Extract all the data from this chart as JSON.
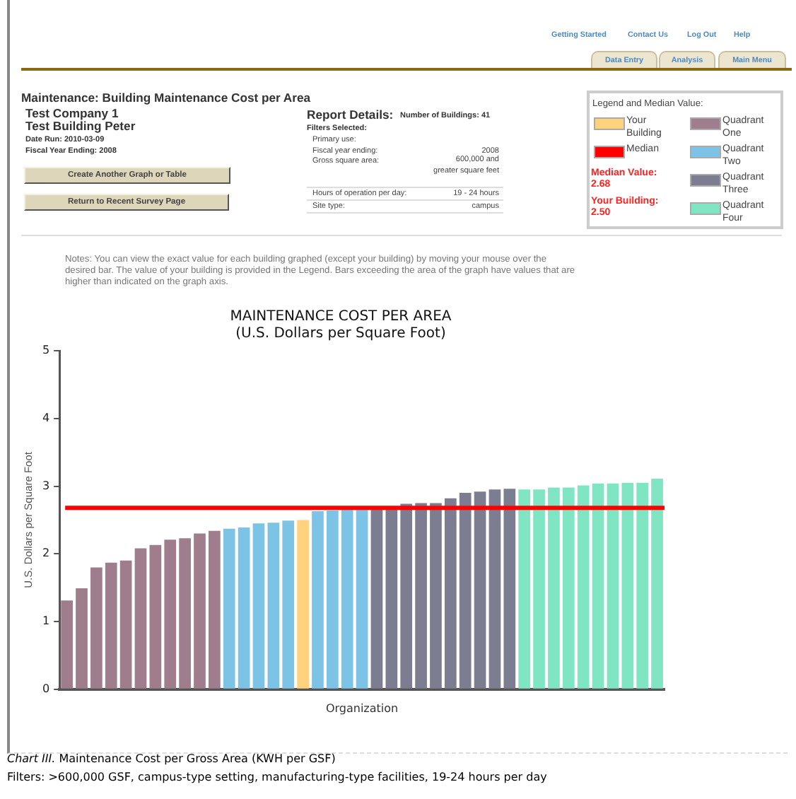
{
  "chart_data": {
    "type": "bar",
    "title": "MAINTENANCE COST PER AREA",
    "subtitle": "(U.S. Dollars per Square Foot)",
    "xlabel": "Organization",
    "ylabel": "U.S. Dollars per Square Foot",
    "legend_title": "Legend and Median Value:",
    "legend": "top right",
    "categories": [
      null,
      null,
      null,
      null,
      null,
      null,
      null,
      null,
      null,
      null,
      null,
      null,
      null,
      null,
      null,
      null,
      null,
      null,
      null,
      null,
      null,
      null,
      null,
      null,
      null,
      null,
      null,
      null,
      null,
      null,
      null,
      null,
      null,
      null,
      null,
      null,
      null,
      null,
      null,
      null,
      null
    ],
    "series": [
      {
        "name": "Your Building",
        "color": "#ffd27d",
        "values": [
          null,
          null,
          null,
          null,
          null,
          null,
          null,
          null,
          null,
          null,
          null,
          null,
          null,
          null,
          null,
          null,
          2.5,
          null,
          null,
          null,
          null,
          null,
          null,
          null,
          null,
          null,
          null,
          null,
          null,
          null,
          null,
          null,
          null,
          null,
          null,
          null,
          null,
          null,
          null,
          null,
          null
        ]
      },
      {
        "name": "Quadrant One",
        "color": "#a07d8c",
        "values": [
          1.31,
          1.49,
          1.8,
          1.87,
          1.9,
          2.08,
          2.13,
          2.21,
          2.23,
          2.3,
          2.34,
          null,
          null,
          null,
          null,
          null,
          null,
          null,
          null,
          null,
          null,
          null,
          null,
          null,
          null,
          null,
          null,
          null,
          null,
          null,
          null,
          null,
          null,
          null,
          null,
          null,
          null,
          null,
          null,
          null,
          null
        ]
      },
      {
        "name": "Quadrant Two",
        "color": "#7dc3e6",
        "values": [
          null,
          null,
          null,
          null,
          null,
          null,
          null,
          null,
          null,
          null,
          null,
          2.37,
          2.39,
          2.45,
          2.46,
          2.49,
          null,
          2.63,
          2.64,
          2.66,
          2.68,
          null,
          null,
          null,
          null,
          null,
          null,
          null,
          null,
          null,
          null,
          null,
          null,
          null,
          null,
          null,
          null,
          null,
          null,
          null,
          null
        ]
      },
      {
        "name": "Quadrant Three",
        "color": "#7d7d91",
        "values": [
          null,
          null,
          null,
          null,
          null,
          null,
          null,
          null,
          null,
          null,
          null,
          null,
          null,
          null,
          null,
          null,
          null,
          null,
          null,
          null,
          null,
          2.69,
          2.7,
          2.74,
          2.75,
          2.75,
          2.82,
          2.9,
          2.92,
          2.95,
          2.96,
          null,
          null,
          null,
          null,
          null,
          null,
          null,
          null,
          null,
          null
        ]
      },
      {
        "name": "Quadrant Four",
        "color": "#80e5c3",
        "values": [
          null,
          null,
          null,
          null,
          null,
          null,
          null,
          null,
          null,
          null,
          null,
          null,
          null,
          null,
          null,
          null,
          null,
          null,
          null,
          null,
          null,
          null,
          null,
          null,
          null,
          null,
          null,
          null,
          null,
          null,
          null,
          2.95,
          2.95,
          2.98,
          2.98,
          3.01,
          3.04,
          3.04,
          3.05,
          3.05,
          3.11
        ]
      }
    ],
    "ylim": [
      0,
      5
    ],
    "yticks": [
      0,
      1,
      2,
      3,
      4,
      5
    ],
    "ref_lines": [
      {
        "axis": "y",
        "value": 2.68,
        "label": "Median",
        "color": "#ff0000"
      }
    ],
    "annotations": [
      "Getting Started",
      "Contact Us",
      "Log Out",
      "Help",
      "Data Entry",
      "Analysis",
      "Main Menu",
      "Maintenance: Building Maintenance Cost per Area",
      "Test Company 1",
      "Test Building Peter",
      "Date Run: 2010-03-09",
      "Fiscal Year Ending: 2008",
      "Create Another Graph or Table",
      "Return to Recent Survey Page",
      "Report Details:",
      "Number of Buildings: 41",
      "Filters Selected:",
      "Primary use:",
      "Fiscal year ending:",
      "2008",
      "Gross square area:",
      "600,000 and greater square feet",
      "Hours of operation per day:",
      "19 - 24 hours",
      "Site type:",
      "campus",
      "Median Value: 2.68",
      "Your Building: 2.50",
      "Notes: You can view the exact value for each building graphed (except your building) by moving your mouse over the desired bar. The value of your building is provided in the Legend. Bars exceeding the area of the graph have values that are higher than indicated on the graph axis.",
      "Chart III.",
      "Maintenance Cost per Gross Area (KWH per GSF)",
      "Filters: >600,000 GSF, campus-type setting, manufacturing-type facilities, 19-24 hours per day"
    ]
  }
}
